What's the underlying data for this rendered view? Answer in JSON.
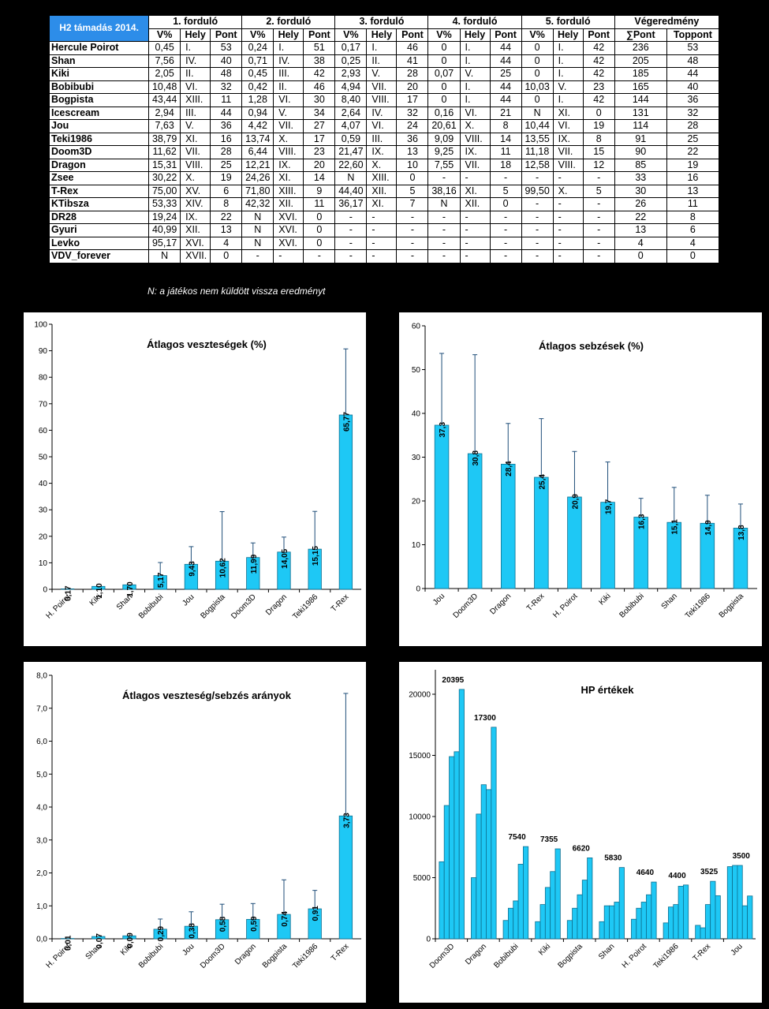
{
  "table": {
    "title": "H2 támadás 2014.",
    "round_headers": [
      "1. forduló",
      "2. forduló",
      "3. forduló",
      "4. forduló",
      "5. forduló"
    ],
    "final_header": "Végeredmény",
    "sub_headers": [
      "V%",
      "Hely",
      "Pont"
    ],
    "final_sub_headers": [
      "∑Pont",
      "Toppont"
    ],
    "rows": [
      [
        "Hercule Poirot",
        "0,45",
        "I.",
        "53",
        "0,24",
        "I.",
        "51",
        "0,17",
        "I.",
        "46",
        "0",
        "I.",
        "44",
        "0",
        "I.",
        "42",
        "236",
        "53"
      ],
      [
        "Shan",
        "7,56",
        "IV.",
        "40",
        "0,71",
        "IV.",
        "38",
        "0,25",
        "II.",
        "41",
        "0",
        "I.",
        "44",
        "0",
        "I.",
        "42",
        "205",
        "48"
      ],
      [
        "Kiki",
        "2,05",
        "II.",
        "48",
        "0,45",
        "III.",
        "42",
        "2,93",
        "V.",
        "28",
        "0,07",
        "V.",
        "25",
        "0",
        "I.",
        "42",
        "185",
        "44"
      ],
      [
        "Bobibubi",
        "10,48",
        "VI.",
        "32",
        "0,42",
        "II.",
        "46",
        "4,94",
        "VII.",
        "20",
        "0",
        "I.",
        "44",
        "10,03",
        "V.",
        "23",
        "165",
        "40"
      ],
      [
        "Bogpista",
        "43,44",
        "XIII.",
        "11",
        "1,28",
        "VI.",
        "30",
        "8,40",
        "VIII.",
        "17",
        "0",
        "I.",
        "44",
        "0",
        "I.",
        "42",
        "144",
        "36"
      ],
      [
        "Icescream",
        "2,94",
        "III.",
        "44",
        "0,94",
        "V.",
        "34",
        "2,64",
        "IV.",
        "32",
        "0,16",
        "VI.",
        "21",
        "N",
        "XI.",
        "0",
        "131",
        "32"
      ],
      [
        "Jou",
        "7,63",
        "V.",
        "36",
        "4,42",
        "VII.",
        "27",
        "4,07",
        "VI.",
        "24",
        "20,61",
        "X.",
        "8",
        "10,44",
        "VI.",
        "19",
        "114",
        "28"
      ],
      [
        "Teki1986",
        "38,79",
        "XI.",
        "16",
        "13,74",
        "X.",
        "17",
        "0,59",
        "III.",
        "36",
        "9,09",
        "VIII.",
        "14",
        "13,55",
        "IX.",
        "8",
        "91",
        "25"
      ],
      [
        "Doom3D",
        "11,62",
        "VII.",
        "28",
        "6,44",
        "VIII.",
        "23",
        "21,47",
        "IX.",
        "13",
        "9,25",
        "IX.",
        "11",
        "11,18",
        "VII.",
        "15",
        "90",
        "22"
      ],
      [
        "Dragon",
        "15,31",
        "VIII.",
        "25",
        "12,21",
        "IX.",
        "20",
        "22,60",
        "X.",
        "10",
        "7,55",
        "VII.",
        "18",
        "12,58",
        "VIII.",
        "12",
        "85",
        "19"
      ],
      [
        "Zsee",
        "30,22",
        "X.",
        "19",
        "24,26",
        "XI.",
        "14",
        "N",
        "XIII.",
        "0",
        "-",
        "-",
        "-",
        "-",
        "-",
        "-",
        "33",
        "16"
      ],
      [
        "T-Rex",
        "75,00",
        "XV.",
        "6",
        "71,80",
        "XIII.",
        "9",
        "44,40",
        "XII.",
        "5",
        "38,16",
        "XI.",
        "5",
        "99,50",
        "X.",
        "5",
        "30",
        "13"
      ],
      [
        "KTibsza",
        "53,33",
        "XIV.",
        "8",
        "42,32",
        "XII.",
        "11",
        "36,17",
        "XI.",
        "7",
        "N",
        "XII.",
        "0",
        "-",
        "-",
        "-",
        "26",
        "11"
      ],
      [
        "DR28",
        "19,24",
        "IX.",
        "22",
        "N",
        "XVI.",
        "0",
        "-",
        "-",
        "-",
        "-",
        "-",
        "-",
        "-",
        "-",
        "-",
        "22",
        "8"
      ],
      [
        "Gyuri",
        "40,99",
        "XII.",
        "13",
        "N",
        "XVI.",
        "0",
        "-",
        "-",
        "-",
        "-",
        "-",
        "-",
        "-",
        "-",
        "-",
        "13",
        "6"
      ],
      [
        "Levko",
        "95,17",
        "XVI.",
        "4",
        "N",
        "XVI.",
        "0",
        "-",
        "-",
        "-",
        "-",
        "-",
        "-",
        "-",
        "-",
        "-",
        "4",
        "4"
      ],
      [
        "VDV_forever",
        "N",
        "XVII.",
        "0",
        "-",
        "-",
        "-",
        "-",
        "-",
        "-",
        "-",
        "-",
        "-",
        "-",
        "-",
        "-",
        "0",
        "0"
      ]
    ],
    "note": "N: a játékos nem küldött vissza eredményt"
  },
  "chart_data": [
    {
      "type": "bar",
      "title": "Átlagos veszteségek (%)",
      "categories": [
        "H. Poirot",
        "Kiki",
        "Shan",
        "Bobibubi",
        "Jou",
        "Bogpista",
        "Doom3D",
        "Dragon",
        "Teki1986",
        "T-Rex"
      ],
      "values": [
        0.17,
        1.1,
        1.7,
        5.17,
        9.43,
        10.62,
        11.99,
        14.05,
        15.15,
        65.77
      ],
      "labels": [
        "0,17",
        "1,10",
        "1,70",
        "5,17",
        "9,43",
        "10,62",
        "11,99",
        "14,05",
        "15,15",
        "65,77"
      ],
      "error_upper": [
        0,
        0,
        0,
        10.1,
        16.1,
        29.3,
        17.5,
        19.7,
        29.4,
        90.7
      ],
      "ylim": [
        0,
        100
      ],
      "ytick_step": 10,
      "tick_decimals": 0,
      "bar_color": "#1ec8f5"
    },
    {
      "type": "bar",
      "title": "Átlagos sebzések (%)",
      "categories": [
        "Jou",
        "Doom3D",
        "Dragon",
        "T-Rex",
        "H. Poirot",
        "Kiki",
        "Bobibubi",
        "Shan",
        "Teki1986",
        "Bogpista"
      ],
      "values": [
        37.3,
        30.8,
        28.4,
        25.4,
        20.9,
        19.7,
        16.3,
        15.1,
        14.9,
        13.8
      ],
      "labels": [
        "37,3",
        "30,8",
        "28,4",
        "25,4",
        "20,9",
        "19,7",
        "16,3",
        "15,1",
        "14,9",
        "13,8"
      ],
      "error_upper": [
        53.7,
        53.4,
        37.7,
        38.8,
        31.3,
        28.9,
        20.6,
        23.1,
        21.3,
        19.3
      ],
      "ylim": [
        0,
        60
      ],
      "ytick_step": 10,
      "tick_decimals": 0,
      "bar_color": "#1ec8f5"
    },
    {
      "type": "bar",
      "title": "Átlagos veszteség/sebzés arányok",
      "categories": [
        "H. Poirot",
        "Shan",
        "Kiki",
        "Bobibubi",
        "Jou",
        "Doom3D",
        "Dragon",
        "Bogpista",
        "Teki1986",
        "T-Rex"
      ],
      "values": [
        0.01,
        0.07,
        0.09,
        0.29,
        0.38,
        0.58,
        0.59,
        0.74,
        0.91,
        3.73
      ],
      "labels": [
        "0,01",
        "0,07",
        "0,09",
        "0,29",
        "0,38",
        "0,58",
        "0,59",
        "0,74",
        "0,91",
        "3,73"
      ],
      "error_upper": [
        0,
        0,
        0,
        0.6,
        0.82,
        1.05,
        1.07,
        1.79,
        1.47,
        7.45
      ],
      "ylim": [
        0,
        8
      ],
      "ytick_step": 1,
      "tick_decimals": 1,
      "bar_color": "#1ec8f5"
    },
    {
      "type": "bar",
      "title": "HP értékek",
      "categories": [
        "Doom3D",
        "Dragon",
        "Bobibubi",
        "Kiki",
        "Bogpista",
        "Shan",
        "H. Poirot",
        "Teki1986",
        "T-Rex",
        "Jou"
      ],
      "series_values": [
        [
          6300,
          10900,
          14900,
          15300,
          20395
        ],
        [
          5000,
          10200,
          12600,
          12200,
          17300
        ],
        [
          1500,
          2500,
          3100,
          6100,
          7540
        ],
        [
          1400,
          2800,
          4200,
          5500,
          7355
        ],
        [
          1500,
          2500,
          3600,
          4800,
          6620
        ],
        [
          1400,
          2700,
          2700,
          3000,
          5830
        ],
        [
          1600,
          2500,
          3000,
          3600,
          4640
        ],
        [
          1300,
          2600,
          2800,
          4300,
          4400
        ],
        [
          1100,
          900,
          2800,
          4700,
          3525
        ],
        [
          5900,
          6000,
          6000,
          2700,
          3500
        ]
      ],
      "max_labels": [
        "20395",
        "17300",
        "7540",
        "7355",
        "6620",
        "5830",
        "4640",
        "4400",
        "3525",
        "3500"
      ],
      "ylim": [
        0,
        22000
      ],
      "yticks": [
        0,
        5000,
        10000,
        15000,
        20000
      ],
      "bar_color": "#1ec8f5"
    }
  ]
}
